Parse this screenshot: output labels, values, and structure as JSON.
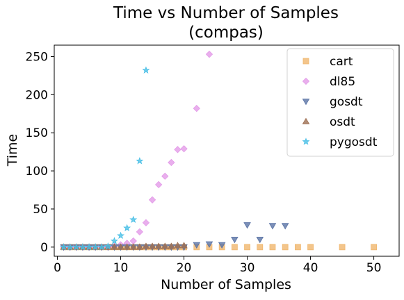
{
  "chart_data": {
    "type": "scatter",
    "title_lines": [
      "Time vs Number of Samples",
      "(compas)"
    ],
    "xlabel": "Number of Samples",
    "ylabel": "Time",
    "xlim": [
      -0.5,
      54
    ],
    "ylim": [
      -12,
      265
    ],
    "xticks": [
      0,
      10,
      20,
      30,
      40,
      50
    ],
    "yticks": [
      0,
      50,
      100,
      150,
      200,
      250
    ],
    "grid": false,
    "legend_position": "top-right",
    "series": [
      {
        "name": "cart",
        "marker": "square",
        "color": "#f0b76e",
        "points": [
          [
            1,
            0
          ],
          [
            2,
            0
          ],
          [
            3,
            0
          ],
          [
            4,
            0
          ],
          [
            5,
            0
          ],
          [
            6,
            0
          ],
          [
            7,
            0
          ],
          [
            8,
            0
          ],
          [
            9,
            0
          ],
          [
            10,
            0
          ],
          [
            11,
            0
          ],
          [
            12,
            0
          ],
          [
            13,
            0
          ],
          [
            14,
            0
          ],
          [
            15,
            0
          ],
          [
            16,
            0
          ],
          [
            17,
            0
          ],
          [
            18,
            0
          ],
          [
            19,
            0
          ],
          [
            20,
            0
          ],
          [
            22,
            0
          ],
          [
            24,
            0
          ],
          [
            26,
            0
          ],
          [
            28,
            0
          ],
          [
            30,
            0
          ],
          [
            32,
            0
          ],
          [
            34,
            0
          ],
          [
            36,
            0
          ],
          [
            38,
            0
          ],
          [
            40,
            0
          ],
          [
            45,
            0
          ],
          [
            50,
            0
          ]
        ]
      },
      {
        "name": "dl85",
        "marker": "diamond",
        "color": "#e39be8",
        "points": [
          [
            1,
            0
          ],
          [
            2,
            0
          ],
          [
            3,
            0
          ],
          [
            4,
            0
          ],
          [
            5,
            0
          ],
          [
            6,
            0
          ],
          [
            7,
            0
          ],
          [
            8,
            0
          ],
          [
            9,
            1
          ],
          [
            10,
            3
          ],
          [
            11,
            5
          ],
          [
            12,
            8
          ],
          [
            13,
            20
          ],
          [
            14,
            32
          ],
          [
            15,
            62
          ],
          [
            16,
            82
          ],
          [
            17,
            93
          ],
          [
            18,
            111
          ],
          [
            19,
            128
          ],
          [
            20,
            129
          ],
          [
            22,
            182
          ],
          [
            24,
            253
          ]
        ]
      },
      {
        "name": "gosdt",
        "marker": "triangle-down",
        "color": "#5a73a5",
        "points": [
          [
            1,
            0
          ],
          [
            2,
            0
          ],
          [
            3,
            0
          ],
          [
            4,
            0
          ],
          [
            5,
            0
          ],
          [
            6,
            0
          ],
          [
            7,
            0
          ],
          [
            8,
            0
          ],
          [
            9,
            0
          ],
          [
            10,
            0
          ],
          [
            11,
            0
          ],
          [
            12,
            0
          ],
          [
            13,
            0
          ],
          [
            14,
            0
          ],
          [
            15,
            0
          ],
          [
            16,
            0
          ],
          [
            17,
            0
          ],
          [
            18,
            0
          ],
          [
            19,
            0
          ],
          [
            20,
            0
          ],
          [
            22,
            3
          ],
          [
            24,
            4
          ],
          [
            26,
            3
          ],
          [
            28,
            10
          ],
          [
            30,
            29
          ],
          [
            32,
            10
          ],
          [
            34,
            28
          ],
          [
            36,
            28
          ]
        ]
      },
      {
        "name": "osdt",
        "marker": "triangle-up",
        "color": "#9e6f52",
        "points": [
          [
            1,
            0
          ],
          [
            2,
            0
          ],
          [
            3,
            0
          ],
          [
            4,
            0
          ],
          [
            5,
            0
          ],
          [
            6,
            0
          ],
          [
            7,
            0
          ],
          [
            8,
            0
          ],
          [
            9,
            0
          ],
          [
            10,
            0
          ],
          [
            11,
            0
          ],
          [
            12,
            0
          ],
          [
            13,
            0
          ],
          [
            14,
            1
          ],
          [
            15,
            1
          ],
          [
            16,
            1
          ],
          [
            17,
            1
          ],
          [
            18,
            1
          ],
          [
            19,
            2
          ],
          [
            20,
            2
          ]
        ]
      },
      {
        "name": "pygosdt",
        "marker": "star",
        "color": "#49bfe6",
        "points": [
          [
            1,
            0
          ],
          [
            2,
            0
          ],
          [
            3,
            0
          ],
          [
            4,
            0
          ],
          [
            5,
            0
          ],
          [
            6,
            0
          ],
          [
            7,
            0
          ],
          [
            8,
            1
          ],
          [
            9,
            8
          ],
          [
            10,
            15
          ],
          [
            11,
            25
          ],
          [
            12,
            36
          ],
          [
            13,
            113
          ],
          [
            14,
            232
          ]
        ]
      }
    ]
  }
}
